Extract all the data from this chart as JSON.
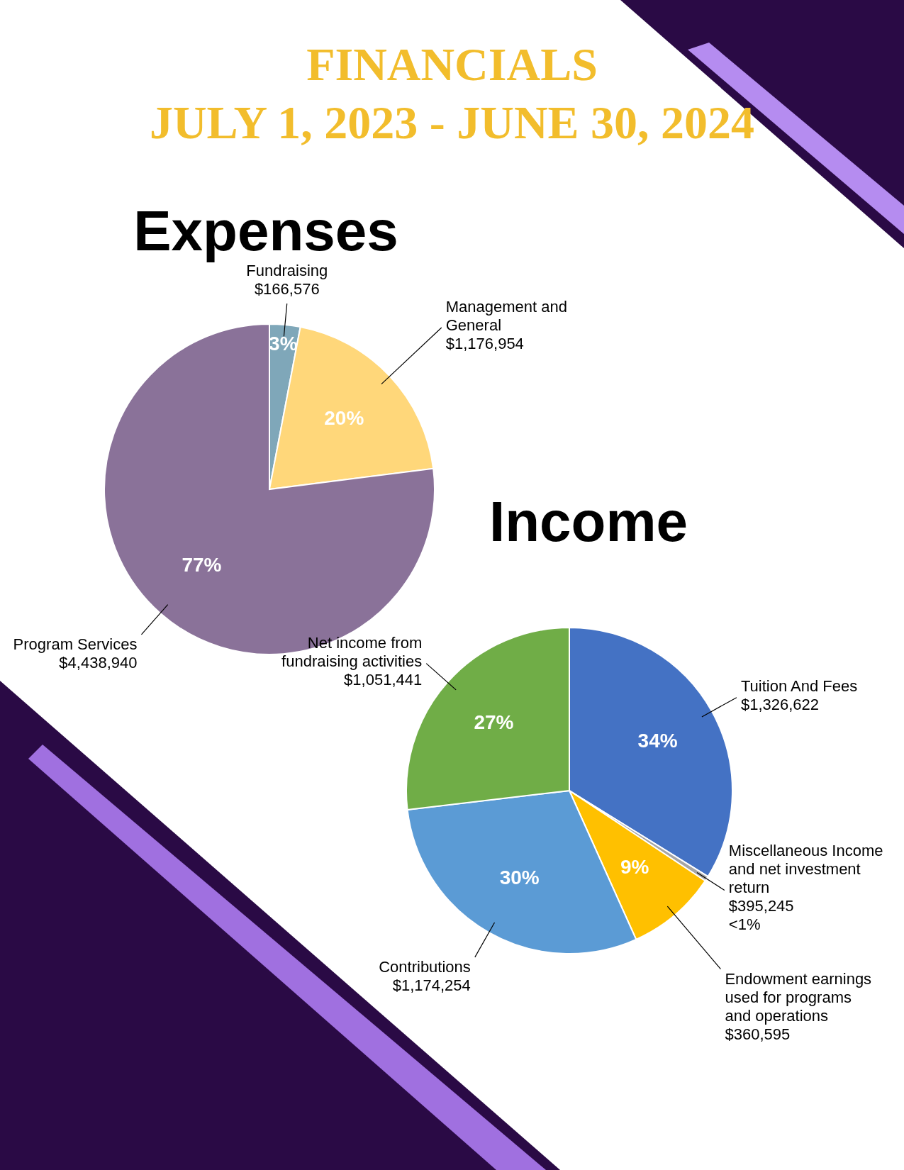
{
  "chart_data": [
    {
      "type": "pie",
      "title": "FINANCIALS\nJULY 1, 2023 - JUNE 30, 2024",
      "subtitle": "Expenses",
      "categories": [
        "Fundraising\n$166,576",
        "Management and\nGeneral\n$1,176,954",
        "Program Services\n$4,438,940"
      ],
      "values": [
        3,
        20,
        77
      ],
      "value_labels": [
        "3%",
        "20%",
        "77%"
      ],
      "colors": [
        "#7fa7b9",
        "#ffd77a",
        "#8a7299"
      ]
    },
    {
      "type": "pie",
      "title": "Income",
      "categories": [
        "Tuition And Fees\n$1,326,622",
        "Miscellaneous Income\nand net investment\nreturn\n$395,245\n<1%",
        "Endowment earnings\nused for programs\nand operations\n$360,595",
        "Contributions\n$1,174,254",
        "Net income from\nfundraising activities\n$1,051,441"
      ],
      "values": [
        34,
        0.5,
        9,
        30,
        27
      ],
      "value_labels": [
        "34%",
        null,
        "9%",
        "30%",
        "27%"
      ],
      "colors": [
        "#4472c4",
        "#a5a5a5",
        "#ffc000",
        "#5b9bd5",
        "#70ad47"
      ]
    }
  ]
}
